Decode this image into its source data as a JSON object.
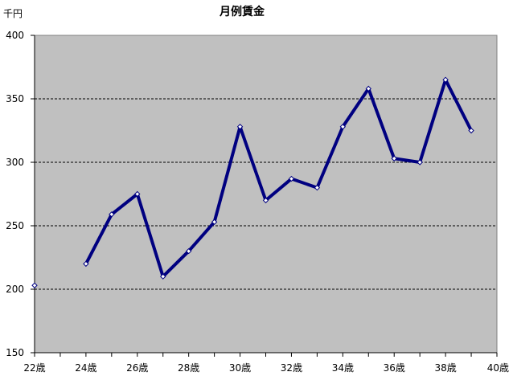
{
  "chart_data": {
    "type": "line",
    "title": "月例賃金",
    "ylabel": "千円",
    "xlabel": "",
    "ylim": [
      150,
      400
    ],
    "yticks": [
      150,
      200,
      250,
      300,
      350,
      400
    ],
    "xlim": [
      22,
      40
    ],
    "xtick_values": [
      22,
      24,
      26,
      28,
      30,
      32,
      34,
      36,
      38,
      40
    ],
    "xtick_labels": [
      "22歳",
      "24歳",
      "26歳",
      "28歳",
      "30歳",
      "32歳",
      "34歳",
      "36歳",
      "38歳",
      "40歳"
    ],
    "grid": {
      "y_major": true,
      "style": "dashed"
    },
    "colors": {
      "plot_background": "#c0c0c0",
      "line": "#000080",
      "marker_fill": "#ffffff",
      "grid": "#000000"
    },
    "series": [
      {
        "x": [
          22,
          24,
          25,
          26,
          27,
          28,
          29,
          30,
          31,
          32,
          33,
          34,
          35,
          36,
          37,
          38,
          39
        ],
        "y": [
          203,
          220,
          259,
          275,
          210,
          230,
          253,
          328,
          270,
          287,
          280,
          328,
          358,
          303,
          300,
          365,
          325
        ],
        "line_breaks_after_index": [
          0
        ]
      }
    ]
  }
}
